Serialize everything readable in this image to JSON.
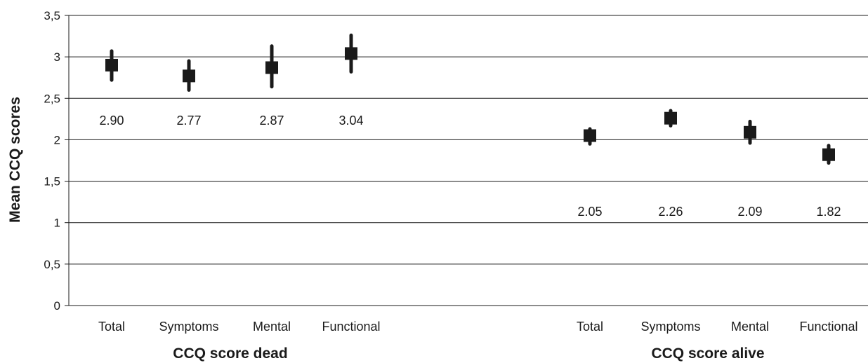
{
  "chart_data": {
    "type": "scatter",
    "ylabel": "Mean CCQ scores",
    "ylim": [
      0,
      3.5
    ],
    "yticks": [
      "0",
      "0,5",
      "1",
      "1,5",
      "2",
      "2,5",
      "3",
      "3,5"
    ],
    "ytick_values": [
      0,
      0.5,
      1,
      1.5,
      2,
      2.5,
      3,
      3.5
    ],
    "grid": true,
    "groups": [
      {
        "name": "CCQ score dead",
        "categories": [
          "Total",
          "Symptoms",
          "Mental",
          "Functional"
        ],
        "values": [
          2.9,
          2.77,
          2.87,
          3.04
        ],
        "value_labels": [
          "2.90",
          "2.77",
          "2.87",
          "3.04"
        ],
        "error_low": [
          2.72,
          2.6,
          2.64,
          2.82
        ],
        "error_high": [
          3.07,
          2.95,
          3.13,
          3.26
        ]
      },
      {
        "name": "CCQ score alive",
        "categories": [
          "Total",
          "Symptoms",
          "Mental",
          "Functional"
        ],
        "values": [
          2.05,
          2.26,
          2.09,
          1.82
        ],
        "value_labels": [
          "2.05",
          "2.26",
          "2.09",
          "1.82"
        ],
        "error_low": [
          1.95,
          2.17,
          1.96,
          1.72
        ],
        "error_high": [
          2.13,
          2.35,
          2.22,
          1.93
        ]
      }
    ],
    "marker_color": "#1a1a1a",
    "grid_color": "#1a1a1a"
  }
}
